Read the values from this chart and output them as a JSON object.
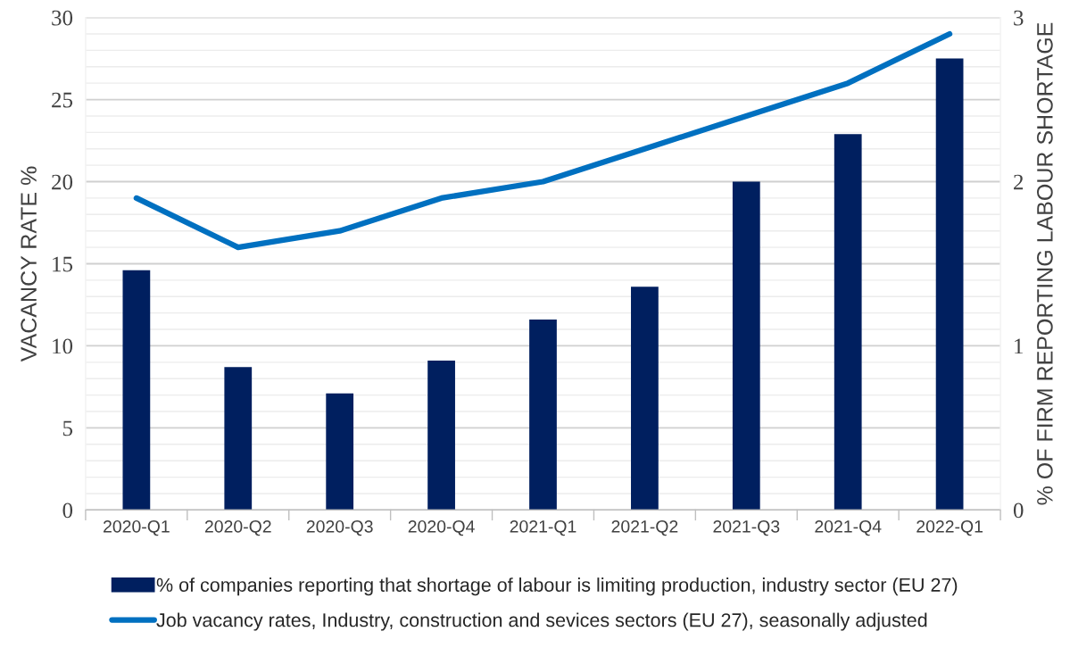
{
  "chart_data": {
    "type": "bar",
    "categories": [
      "2020-Q1",
      "2020-Q2",
      "2020-Q3",
      "2020-Q4",
      "2021-Q1",
      "2021-Q2",
      "2021-Q3",
      "2021-Q4",
      "2022-Q1"
    ],
    "series": [
      {
        "name": "% of companies reporting that shortage of labour is limiting production, industry sector (EU 27)",
        "color": "#001f5f",
        "values": [
          14.6,
          8.7,
          7.1,
          9.1,
          11.6,
          13.6,
          20.0,
          22.9,
          27.5
        ]
      },
      {
        "name": "Job vacancy rates, Industry, construction and sevices sectors (EU 27), seasonally adjusted",
        "color": "#0070c0",
        "type": "line",
        "axis": "y2",
        "values": [
          1.9,
          1.6,
          1.7,
          1.9,
          2.0,
          2.2,
          2.4,
          2.6,
          2.9
        ]
      }
    ],
    "ylabel": "VACANCY RATE %",
    "y2label": "% OF FIRM REPORTING LABOUR SHORTAGE",
    "ylim": [
      0,
      30
    ],
    "yticks": [
      0,
      {
        "value": 1,
        "label": null
      },
      {
        "value": 2,
        "label": null
      },
      {
        "value": 3,
        "label": null
      },
      {
        "value": 4,
        "label": null
      },
      5,
      {
        "value": 6,
        "label": null
      },
      {
        "value": 7,
        "label": null
      },
      {
        "value": 8,
        "label": null
      },
      {
        "value": 9,
        "label": null
      },
      10,
      {
        "value": 11,
        "label": null
      },
      {
        "value": 12,
        "label": null
      },
      {
        "value": 13,
        "label": null
      },
      {
        "value": 14,
        "label": null
      },
      15,
      {
        "value": 16,
        "label": null
      },
      {
        "value": 17,
        "label": null
      },
      {
        "value": 18,
        "label": null
      },
      {
        "value": 19,
        "label": null
      },
      20,
      {
        "value": 21,
        "label": null
      },
      {
        "value": 22,
        "label": null
      },
      {
        "value": 23,
        "label": null
      },
      {
        "value": 24,
        "label": null
      },
      25,
      {
        "value": 26,
        "label": null
      },
      {
        "value": 27,
        "label": null
      },
      {
        "value": 28,
        "label": null
      },
      {
        "value": 29,
        "label": null
      },
      30
    ],
    "y2lim": [
      0,
      3
    ],
    "y2ticks": [
      0,
      1,
      2,
      3
    ],
    "grid": "y",
    "legend": "bottom",
    "marker": "none",
    "line_style": "solid"
  }
}
